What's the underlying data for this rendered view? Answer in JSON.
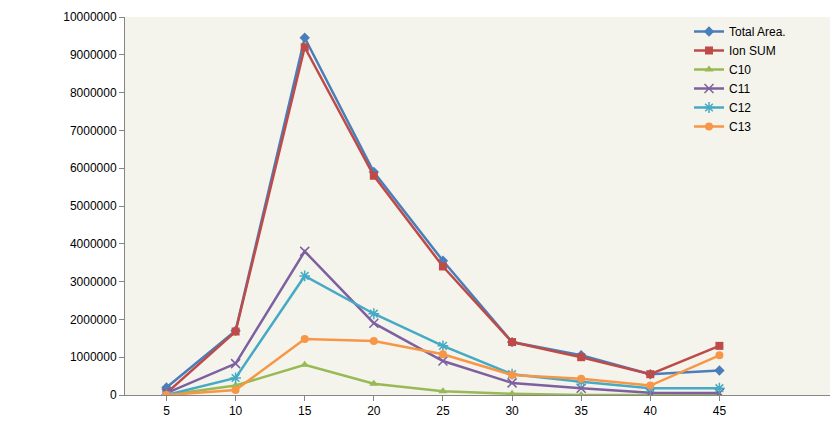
{
  "chart_data": {
    "type": "line",
    "x": [
      5,
      10,
      15,
      20,
      25,
      30,
      35,
      40,
      45
    ],
    "series": [
      {
        "name": "Total Area.",
        "color": "#4a7ebb",
        "marker": "diamond",
        "values": [
          200000,
          1700000,
          9450000,
          5900000,
          3550000,
          1400000,
          1050000,
          550000,
          650000
        ]
      },
      {
        "name": "Ion SUM",
        "color": "#be4b48",
        "marker": "square",
        "values": [
          50000,
          1680000,
          9200000,
          5800000,
          3400000,
          1400000,
          1000000,
          550000,
          1300000
        ]
      },
      {
        "name": "C10",
        "color": "#98b954",
        "marker": "triangle-up",
        "values": [
          0,
          250000,
          800000,
          300000,
          100000,
          30000,
          0,
          0,
          0
        ]
      },
      {
        "name": "C11",
        "color": "#7d60a0",
        "marker": "x",
        "values": [
          50000,
          830000,
          3800000,
          1900000,
          900000,
          320000,
          180000,
          60000,
          50000
        ]
      },
      {
        "name": "C12",
        "color": "#46aac5",
        "marker": "asterisk",
        "values": [
          0,
          450000,
          3150000,
          2150000,
          1300000,
          550000,
          350000,
          180000,
          180000
        ]
      },
      {
        "name": "C13",
        "color": "#f79646",
        "marker": "circle",
        "values": [
          0,
          130000,
          1480000,
          1430000,
          1080000,
          530000,
          430000,
          250000,
          1050000
        ]
      }
    ],
    "xlim": [
      2,
      53
    ],
    "xticks": [
      5,
      10,
      15,
      20,
      25,
      30,
      35,
      40,
      45
    ],
    "ylim": [
      0,
      10000000
    ],
    "yticks": [
      0,
      1000000,
      2000000,
      3000000,
      4000000,
      5000000,
      6000000,
      7000000,
      8000000,
      9000000,
      10000000
    ],
    "grid": false,
    "legend": "upper right"
  }
}
